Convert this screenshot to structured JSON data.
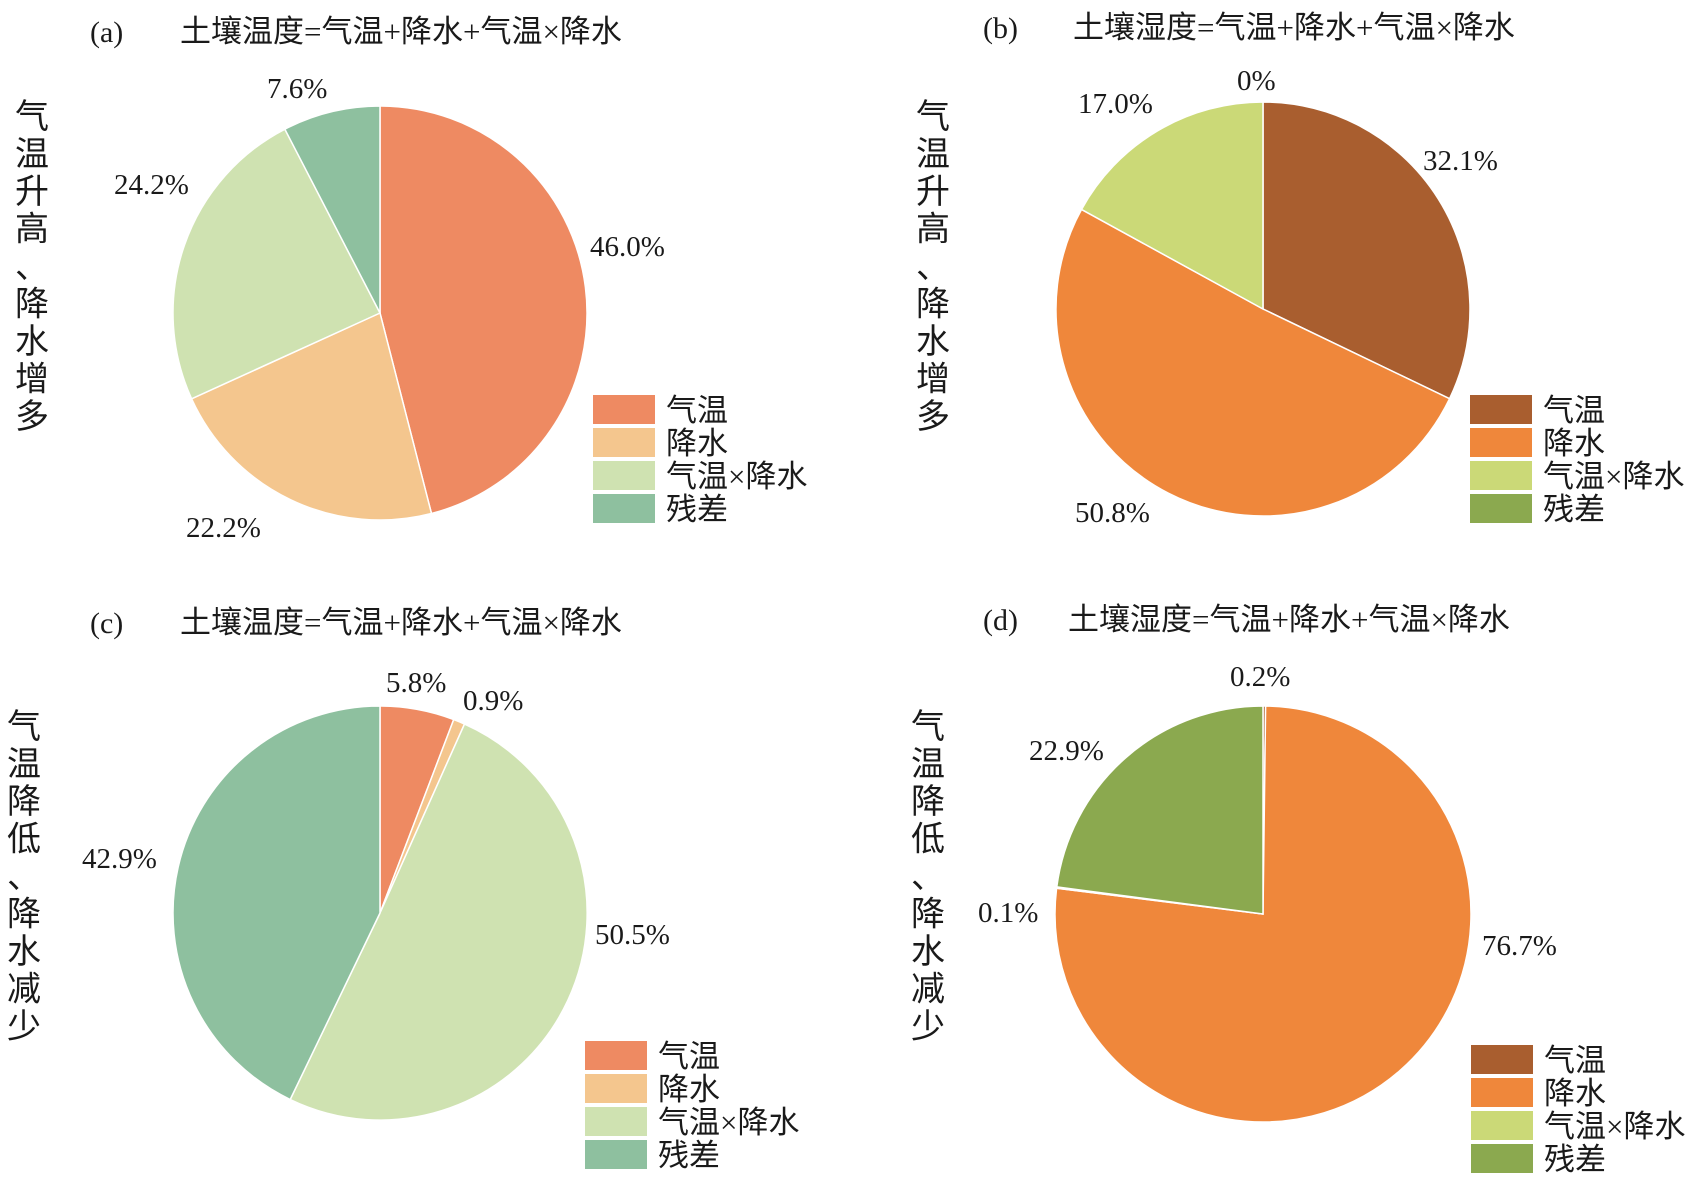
{
  "chart_data": [
    {
      "type": "pie",
      "panel_label": "(a)",
      "title": "土壤温度=气温+降水+气温×降水",
      "side_label": "气温升高、降水增多",
      "categories": [
        "气温",
        "降水",
        "气温×降水",
        "残差"
      ],
      "values": [
        46.0,
        22.2,
        24.2,
        7.6
      ],
      "value_labels": [
        "46.0%",
        "22.2%",
        "24.2%",
        "7.6%"
      ],
      "colors": [
        "#EE8A62",
        "#F4C68E",
        "#CFE2B1",
        "#8EC09F"
      ],
      "legend": "bottom-right"
    },
    {
      "type": "pie",
      "panel_label": "(b)",
      "title": "土壤湿度=气温+降水+气温×降水",
      "side_label": "气温升高、降水增多",
      "categories": [
        "气温",
        "降水",
        "气温×降水",
        "残差"
      ],
      "values": [
        32.1,
        50.8,
        17.0,
        0
      ],
      "value_labels": [
        "32.1%",
        "50.8%",
        "17.0%",
        "0%"
      ],
      "colors": [
        "#A95E2F",
        "#EF873B",
        "#CBD977",
        "#8BA94F"
      ],
      "legend": "bottom-right"
    },
    {
      "type": "pie",
      "panel_label": "(c)",
      "title": "土壤温度=气温+降水+气温×降水",
      "side_label": "气温降低、降水减少",
      "categories": [
        "气温",
        "降水",
        "气温×降水",
        "残差"
      ],
      "values": [
        5.8,
        0.9,
        50.5,
        42.9
      ],
      "value_labels": [
        "5.8%",
        "0.9%",
        "50.5%",
        "42.9%"
      ],
      "colors": [
        "#EE8A62",
        "#F4C68E",
        "#CFE2B1",
        "#8EC09F"
      ],
      "legend": "bottom-right"
    },
    {
      "type": "pie",
      "panel_label": "(d)",
      "title": "土壤湿度=气温+降水+气温×降水",
      "side_label": "气温降低、降水减少",
      "categories": [
        "气温",
        "降水",
        "气温×降水",
        "残差"
      ],
      "values": [
        0.2,
        76.7,
        0.1,
        22.9
      ],
      "value_labels": [
        "0.2%",
        "76.7%",
        "0.1%",
        "22.9%"
      ],
      "colors": [
        "#A95E2F",
        "#EF873B",
        "#CBD977",
        "#8BA94F"
      ],
      "legend": "bottom-right"
    }
  ]
}
